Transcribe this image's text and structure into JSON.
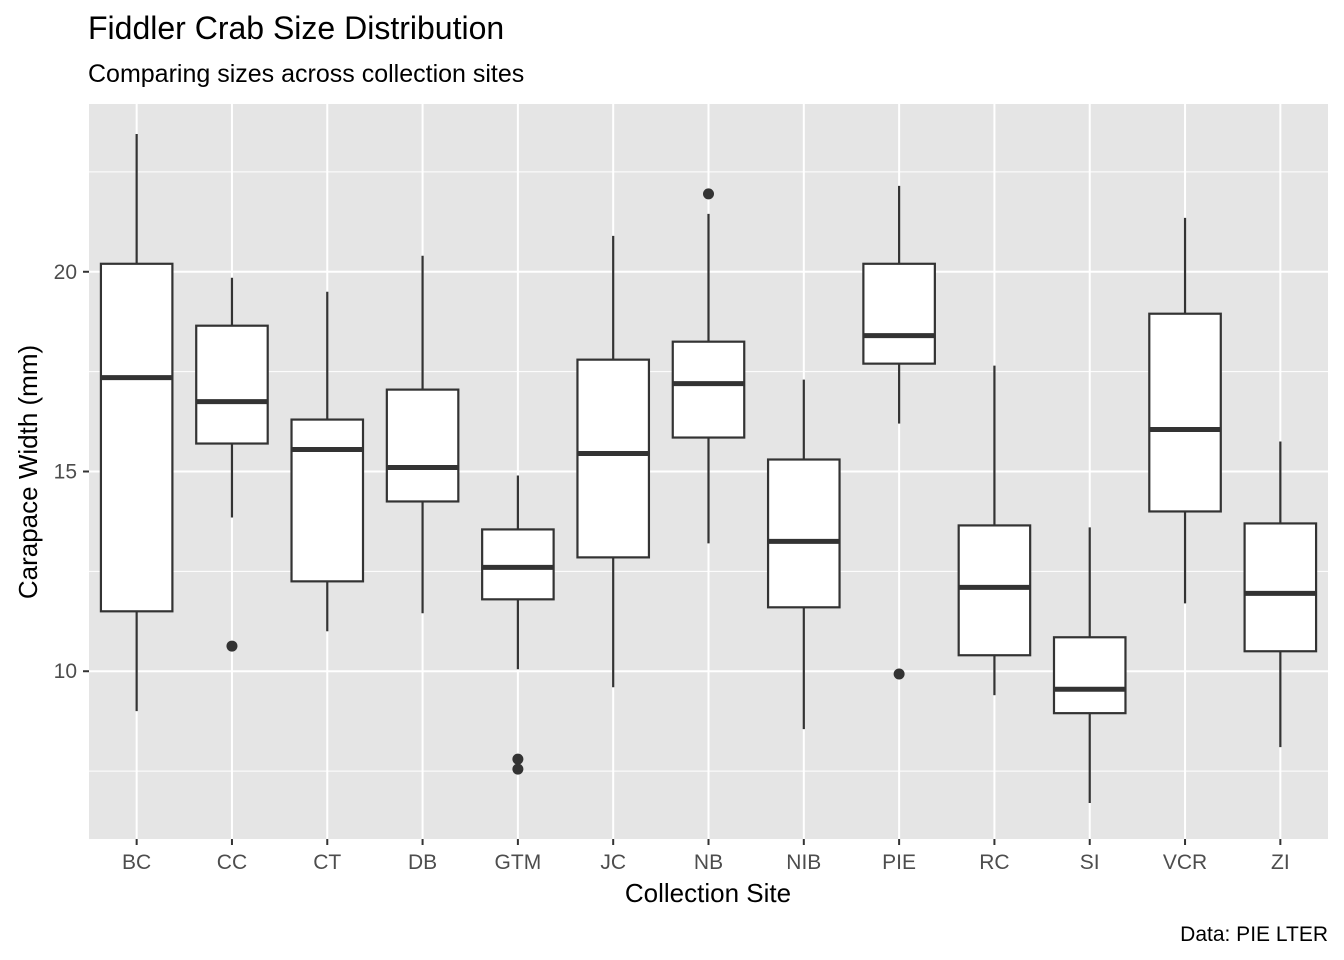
{
  "chart_data": {
    "type": "box",
    "title": "Fiddler Crab Size Distribution",
    "subtitle": "Comparing sizes across collection sites",
    "xlabel": "Collection Site",
    "ylabel": "Carapace Width (mm)",
    "caption": "Data: PIE LTER",
    "ylim": [
      5.8,
      24.2
    ],
    "yticks": [
      10,
      15,
      20
    ],
    "grid": true,
    "colors": {
      "panel": "#e5e5e5",
      "grid": "#ffffff",
      "box_fill": "#ffffff",
      "box_line": "#333333",
      "tick_text": "#4d4d4d"
    },
    "categories": [
      "BC",
      "CC",
      "CT",
      "DB",
      "GTM",
      "JC",
      "NB",
      "NIB",
      "PIE",
      "RC",
      "SI",
      "VCR",
      "ZI"
    ],
    "boxes": [
      {
        "site": "BC",
        "whisker_low": 9.0,
        "q1": 11.5,
        "median": 17.35,
        "q3": 20.2,
        "whisker_high": 23.45,
        "outliers": []
      },
      {
        "site": "CC",
        "whisker_low": 13.85,
        "q1": 15.7,
        "median": 16.75,
        "q3": 18.65,
        "whisker_high": 19.85,
        "outliers": [
          10.63
        ]
      },
      {
        "site": "CT",
        "whisker_low": 11.0,
        "q1": 12.25,
        "median": 15.55,
        "q3": 16.3,
        "whisker_high": 19.5,
        "outliers": []
      },
      {
        "site": "DB",
        "whisker_low": 11.45,
        "q1": 14.25,
        "median": 15.1,
        "q3": 17.05,
        "whisker_high": 20.4,
        "outliers": []
      },
      {
        "site": "GTM",
        "whisker_low": 10.05,
        "q1": 11.8,
        "median": 12.6,
        "q3": 13.55,
        "whisker_high": 14.9,
        "outliers": [
          7.8,
          7.55
        ]
      },
      {
        "site": "JC",
        "whisker_low": 9.6,
        "q1": 12.85,
        "median": 15.45,
        "q3": 17.8,
        "whisker_high": 20.9,
        "outliers": []
      },
      {
        "site": "NB",
        "whisker_low": 13.2,
        "q1": 15.85,
        "median": 17.2,
        "q3": 18.25,
        "whisker_high": 21.45,
        "outliers": [
          21.95
        ]
      },
      {
        "site": "NIB",
        "whisker_low": 8.55,
        "q1": 11.6,
        "median": 13.25,
        "q3": 15.3,
        "whisker_high": 17.3,
        "outliers": []
      },
      {
        "site": "PIE",
        "whisker_low": 16.2,
        "q1": 17.7,
        "median": 18.4,
        "q3": 20.2,
        "whisker_high": 22.15,
        "outliers": [
          9.93
        ]
      },
      {
        "site": "RC",
        "whisker_low": 9.4,
        "q1": 10.4,
        "median": 12.1,
        "q3": 13.65,
        "whisker_high": 17.65,
        "outliers": []
      },
      {
        "site": "SI",
        "whisker_low": 6.7,
        "q1": 8.95,
        "median": 9.55,
        "q3": 10.85,
        "whisker_high": 13.6,
        "outliers": []
      },
      {
        "site": "VCR",
        "whisker_low": 11.7,
        "q1": 14.0,
        "median": 16.05,
        "q3": 18.95,
        "whisker_high": 21.35,
        "outliers": []
      },
      {
        "site": "ZI",
        "whisker_low": 8.1,
        "q1": 10.5,
        "median": 11.95,
        "q3": 13.7,
        "whisker_high": 15.75,
        "outliers": []
      }
    ]
  }
}
